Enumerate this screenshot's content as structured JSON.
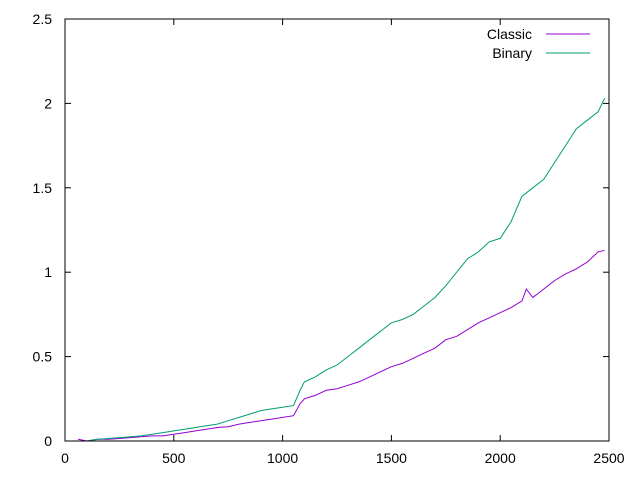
{
  "chart_data": {
    "type": "line",
    "title": "",
    "xlabel": "",
    "ylabel": "",
    "xlim": [
      0,
      2500
    ],
    "ylim": [
      0,
      2.5
    ],
    "xticks": [
      "0",
      "500",
      "1000",
      "1500",
      "2000",
      "2500"
    ],
    "yticks": [
      "0",
      "0.5",
      "1",
      "1.5",
      "2",
      "2.5"
    ],
    "grid": false,
    "legend_position": "top-right",
    "series": [
      {
        "name": "Classic",
        "color": "#9400d3",
        "x": [
          60,
          100,
          150,
          200,
          250,
          300,
          350,
          400,
          450,
          500,
          550,
          600,
          650,
          700,
          750,
          800,
          850,
          900,
          950,
          1000,
          1050,
          1080,
          1100,
          1150,
          1200,
          1250,
          1300,
          1350,
          1400,
          1450,
          1500,
          1550,
          1600,
          1650,
          1700,
          1750,
          1800,
          1850,
          1900,
          1950,
          2000,
          2050,
          2100,
          2120,
          2150,
          2200,
          2250,
          2300,
          2350,
          2400,
          2450,
          2480
        ],
        "y": [
          0.01,
          0.0,
          0.01,
          0.01,
          0.015,
          0.02,
          0.025,
          0.03,
          0.03,
          0.04,
          0.05,
          0.06,
          0.07,
          0.08,
          0.085,
          0.1,
          0.11,
          0.12,
          0.13,
          0.14,
          0.15,
          0.22,
          0.25,
          0.27,
          0.3,
          0.31,
          0.33,
          0.35,
          0.38,
          0.41,
          0.44,
          0.46,
          0.49,
          0.52,
          0.55,
          0.6,
          0.62,
          0.66,
          0.7,
          0.73,
          0.76,
          0.79,
          0.83,
          0.9,
          0.85,
          0.9,
          0.95,
          0.99,
          1.02,
          1.06,
          1.12,
          1.13
        ]
      },
      {
        "name": "Binary",
        "color": "#009e73",
        "x": [
          100,
          150,
          200,
          250,
          300,
          350,
          400,
          450,
          500,
          550,
          600,
          650,
          700,
          750,
          800,
          850,
          900,
          950,
          1000,
          1050,
          1080,
          1100,
          1150,
          1200,
          1250,
          1300,
          1350,
          1400,
          1450,
          1500,
          1550,
          1600,
          1650,
          1700,
          1750,
          1800,
          1850,
          1900,
          1950,
          2000,
          2050,
          2100,
          2150,
          2200,
          2250,
          2300,
          2350,
          2400,
          2450,
          2480
        ],
        "y": [
          0.0,
          0.01,
          0.015,
          0.02,
          0.025,
          0.03,
          0.04,
          0.05,
          0.06,
          0.07,
          0.08,
          0.09,
          0.1,
          0.12,
          0.14,
          0.16,
          0.18,
          0.19,
          0.2,
          0.21,
          0.3,
          0.35,
          0.38,
          0.42,
          0.45,
          0.5,
          0.55,
          0.6,
          0.65,
          0.7,
          0.72,
          0.75,
          0.8,
          0.85,
          0.92,
          1.0,
          1.08,
          1.12,
          1.18,
          1.2,
          1.3,
          1.45,
          1.5,
          1.55,
          1.65,
          1.75,
          1.85,
          1.9,
          1.95,
          2.03
        ]
      }
    ]
  }
}
